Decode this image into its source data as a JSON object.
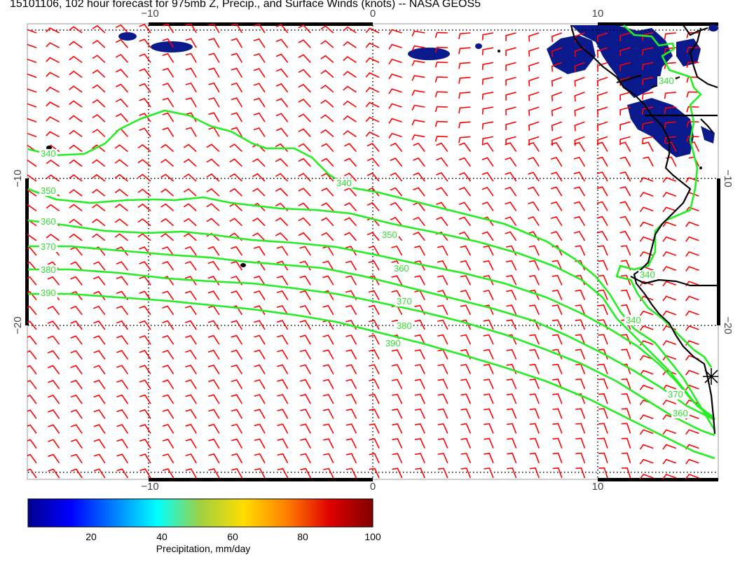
{
  "title": "15101106, 102 hour forecast for 975mb Z, Precip., and Surface Winds (knots) -- NASA GEOS5",
  "colors": {
    "wind_barb": "#ff0000",
    "contour": "#22ee22",
    "coast": "#000000",
    "precip": "#0a1a8c",
    "grid": "#000000"
  },
  "axes": {
    "top_ticks": [
      "−10",
      "0",
      "10"
    ],
    "bottom_ticks": [
      "−10",
      "0",
      "10"
    ],
    "left_ticks": [
      "−10",
      "−20"
    ],
    "right_ticks": [
      "−10",
      "−20"
    ]
  },
  "contour_labels": [
    {
      "text": "340"
    },
    {
      "text": "350"
    },
    {
      "text": "360"
    },
    {
      "text": "370"
    },
    {
      "text": "380"
    },
    {
      "text": "390"
    },
    {
      "text": "340"
    },
    {
      "text": "350"
    },
    {
      "text": "360"
    },
    {
      "text": "370"
    },
    {
      "text": "380"
    },
    {
      "text": "390"
    },
    {
      "text": "340"
    },
    {
      "text": "340"
    },
    {
      "text": "370"
    },
    {
      "text": "360"
    },
    {
      "text": "340"
    }
  ],
  "colorbar": {
    "ticks": [
      "20",
      "40",
      "60",
      "80",
      "100"
    ],
    "label": "Precipitation, mm/day"
  }
}
